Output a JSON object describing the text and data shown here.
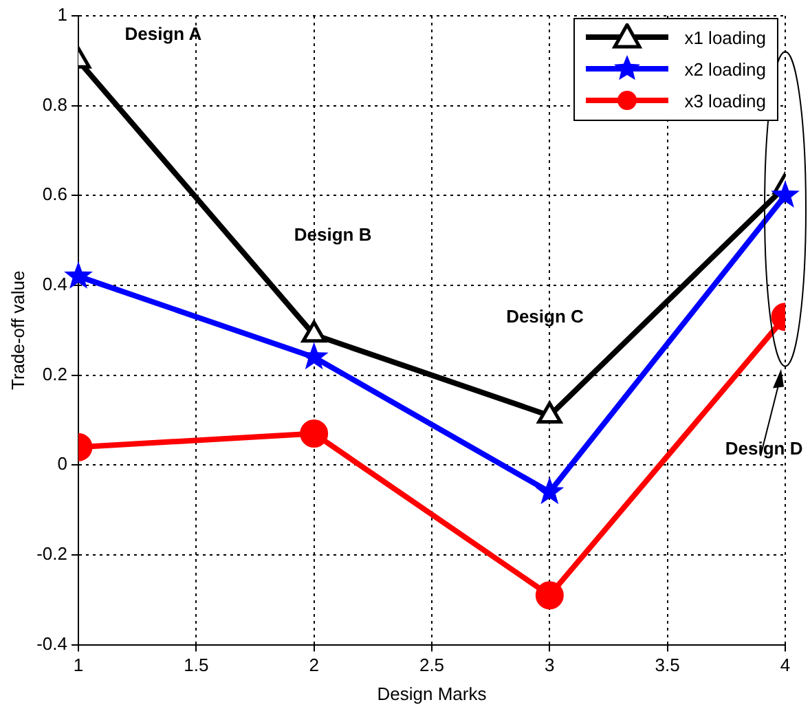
{
  "chart_data": {
    "type": "line",
    "xlabel": "Design Marks",
    "ylabel": "Trade-off value",
    "x": [
      1,
      2,
      3,
      4
    ],
    "series": [
      {
        "name": "x1 loading",
        "color": "#000000",
        "marker": "triangle",
        "values": [
          0.9,
          0.29,
          0.11,
          0.62
        ]
      },
      {
        "name": "x2 loading",
        "color": "#0000ff",
        "marker": "star",
        "values": [
          0.42,
          0.24,
          -0.06,
          0.6
        ]
      },
      {
        "name": "x3 loading",
        "color": "#ff0000",
        "marker": "circle",
        "values": [
          0.04,
          0.07,
          -0.29,
          0.33
        ]
      }
    ],
    "xlim": [
      1,
      4
    ],
    "xticks": [
      1,
      1.5,
      2,
      2.5,
      3,
      3.5,
      4
    ],
    "ylim": [
      -0.4,
      1
    ],
    "yticks": [
      -0.4,
      -0.2,
      0,
      0.2,
      0.4,
      0.6,
      0.8,
      1
    ],
    "grid": true,
    "legend": "top right",
    "line_style": "solid",
    "annotations": [
      "Design A",
      "Design B",
      "Design C",
      "Design D"
    ]
  }
}
